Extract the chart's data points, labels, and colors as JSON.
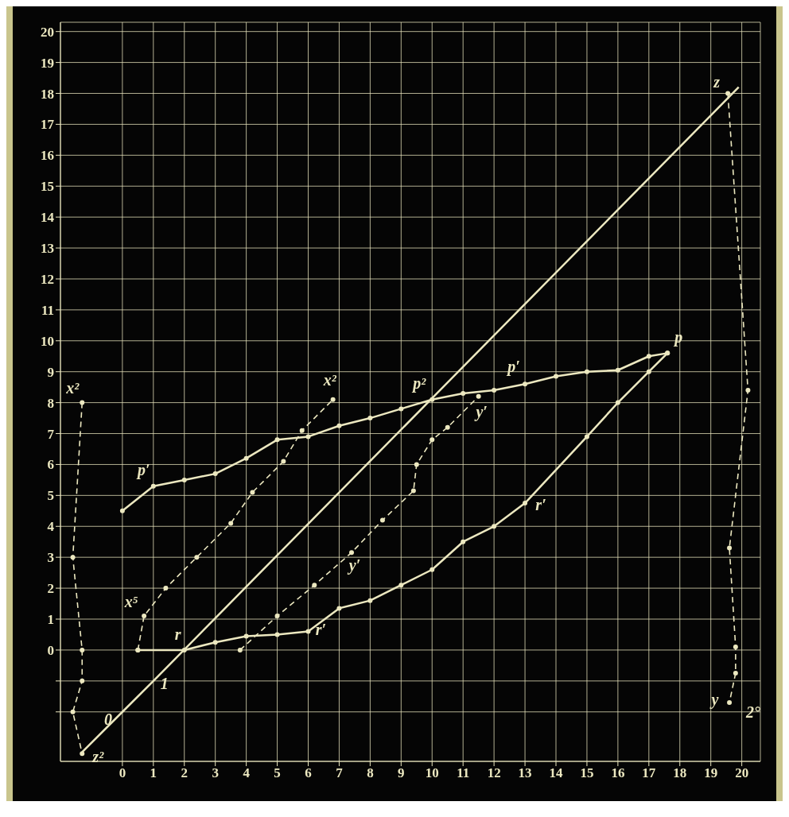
{
  "chart_data": {
    "type": "line",
    "xlim": [
      -2,
      20.6
    ],
    "ylim": [
      -3.6,
      20.3
    ],
    "xticks": [
      0,
      1,
      2,
      3,
      4,
      5,
      6,
      7,
      8,
      9,
      10,
      11,
      12,
      13,
      14,
      15,
      16,
      17,
      18,
      19,
      20
    ],
    "yticks": [
      {
        "value": -2,
        "label": null
      },
      {
        "value": -1,
        "label": null
      },
      0,
      1,
      2,
      3,
      4,
      5,
      6,
      7,
      8,
      9,
      10,
      11,
      12,
      13,
      14,
      15,
      16,
      17,
      18,
      19,
      20
    ],
    "grid": true,
    "marker": "circle",
    "series": [
      {
        "color": "#ece8c0",
        "line_style": "solid",
        "x": [
          0,
          1,
          2,
          3,
          4,
          5,
          6,
          7,
          8,
          9,
          10,
          11,
          12,
          13,
          14,
          15,
          16,
          17,
          17.6
        ],
        "values": [
          4.5,
          5.3,
          5.5,
          5.7,
          6.2,
          6.8,
          6.9,
          7.25,
          7.5,
          7.8,
          8.1,
          8.3,
          8.4,
          8.6,
          8.85,
          9.0,
          9.05,
          9.5,
          9.6
        ]
      },
      {
        "color": "#ece8c0",
        "line_style": "solid",
        "x": [
          0.5,
          2,
          3,
          4,
          5,
          6,
          7,
          8,
          9,
          10,
          11,
          12,
          13,
          15,
          16,
          17,
          17.6
        ],
        "values": [
          0,
          0,
          0.25,
          0.45,
          0.5,
          0.6,
          1.35,
          1.6,
          2.1,
          2.6,
          3.5,
          4.0,
          4.75,
          6.9,
          8.0,
          9.0,
          9.6
        ]
      },
      {
        "color": "#ece8c0",
        "line_style": "dashed",
        "x": [
          0.5,
          0.7,
          1.4,
          2.4,
          3.5,
          4.2,
          5.2,
          5.8,
          6.8
        ],
        "values": [
          0,
          1.1,
          2.0,
          3.0,
          4.1,
          5.1,
          6.1,
          7.1,
          8.1
        ]
      },
      {
        "color": "#ece8c0",
        "line_style": "dashed",
        "x": [
          3.8,
          5,
          6.2,
          7.4,
          8.4,
          9.4,
          9.5,
          10,
          10.5,
          11.5
        ],
        "values": [
          0,
          1.1,
          2.1,
          3.15,
          4.2,
          5.15,
          6,
          6.8,
          7.2,
          8.2
        ]
      },
      {
        "color": "#ece8c0",
        "line_style": "solid",
        "marker": "none",
        "x": [
          -1.3,
          0,
          1,
          19.9
        ],
        "values": [
          -3.3,
          -2,
          -1,
          18.2
        ]
      },
      {
        "color": "#ece8c0",
        "line_style": "dashed",
        "x": [
          -1.3,
          -1.6,
          -1.3,
          -1.3,
          -1.6,
          -1.3
        ],
        "values": [
          8.0,
          3.0,
          0,
          -1.0,
          -2.0,
          -3.35
        ]
      },
      {
        "color": "#ece8c0",
        "line_style": "dashed",
        "x": [
          19.55,
          20.2,
          19.6,
          19.8,
          19.8,
          19.6
        ],
        "values": [
          18.0,
          8.4,
          3.3,
          0.1,
          -0.75,
          -1.7
        ]
      }
    ],
    "annotations": [
      {
        "text": "p′",
        "x": 1,
        "y": 5.3
      },
      {
        "text": "p′",
        "x": 13,
        "y": 8.6
      },
      {
        "text": "p²",
        "x": 10,
        "y": 8.1
      },
      {
        "text": "p",
        "x": 17.6,
        "y": 9.6
      },
      {
        "text": "r",
        "x": 2,
        "y": 0
      },
      {
        "text": "r′",
        "x": 6,
        "y": 0.6
      },
      {
        "text": "r′",
        "x": 13,
        "y": 4.75
      },
      {
        "text": "x²",
        "x": 6.8,
        "y": 8.1
      },
      {
        "text": "x⁵",
        "x": 0.7,
        "y": 1.1
      },
      {
        "text": "x²",
        "x": -1.3,
        "y": 8.0
      },
      {
        "text": "y′",
        "x": 7.4,
        "y": 3.15
      },
      {
        "text": "y′",
        "x": 11.5,
        "y": 8.2
      },
      {
        "text": "z",
        "x": 19.55,
        "y": 18.0
      },
      {
        "text": "z²",
        "x": -1.3,
        "y": -3.35
      },
      {
        "text": "0",
        "x": 0,
        "y": -2
      },
      {
        "text": "1",
        "x": 1,
        "y": -1
      },
      {
        "text": "y",
        "x": 19.6,
        "y": -1.7
      },
      {
        "text": "2°",
        "x": 19.6,
        "y": -1.7
      }
    ]
  }
}
